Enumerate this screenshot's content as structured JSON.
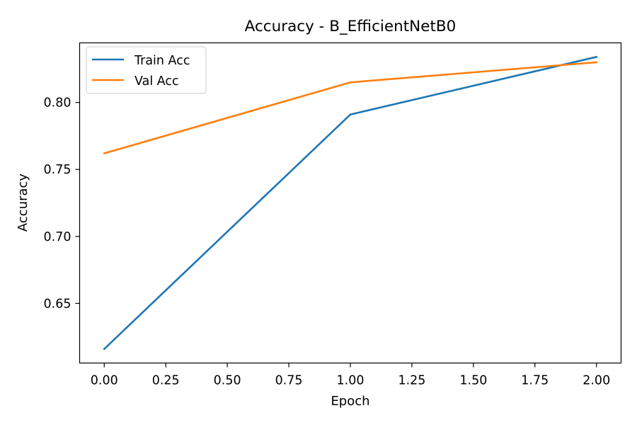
{
  "chart_data": {
    "type": "line",
    "title": "Accuracy - B_EfficientNetB0",
    "xlabel": "Epoch",
    "ylabel": "Accuracy",
    "x": [
      0,
      1,
      2
    ],
    "series": [
      {
        "name": "Train Acc",
        "color": "#1f77b4",
        "values": [
          0.616,
          0.791,
          0.834
        ]
      },
      {
        "name": "Val Acc",
        "color": "#ff7f0e",
        "values": [
          0.762,
          0.815,
          0.83
        ]
      }
    ],
    "xlim": [
      -0.1,
      2.1
    ],
    "ylim": [
      0.6055,
      0.8445
    ],
    "xticks": [
      0.0,
      0.25,
      0.5,
      0.75,
      1.0,
      1.25,
      1.5,
      1.75,
      2.0
    ],
    "xtick_labels": [
      "0.00",
      "0.25",
      "0.50",
      "0.75",
      "1.00",
      "1.25",
      "1.50",
      "1.75",
      "2.00"
    ],
    "yticks": [
      0.65,
      0.7,
      0.75,
      0.8
    ],
    "ytick_labels": [
      "0.65",
      "0.70",
      "0.75",
      "0.80"
    ],
    "grid": false,
    "legend_position": "upper-left"
  }
}
